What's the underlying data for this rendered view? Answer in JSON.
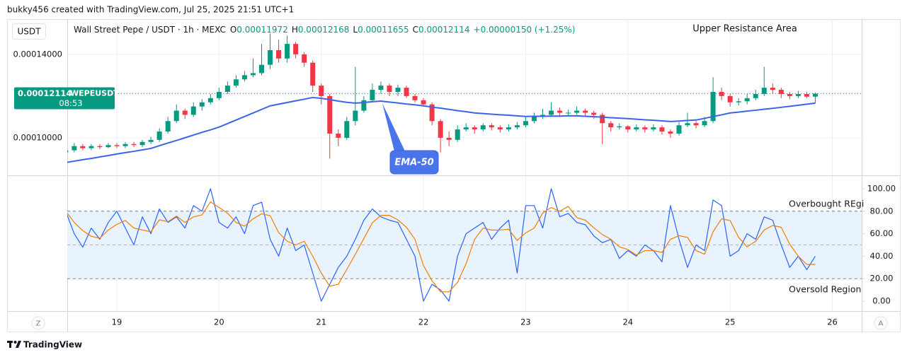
{
  "header": {
    "attribution": "bukky456 created with TradingView.com, Jul 25, 2025 21:51 UTC+1",
    "currency_button": "USDT",
    "symbol": "Wall Street Pepe / USDT · 1h · MEXC",
    "ohlc_labels": [
      "O",
      "H",
      "L",
      "C"
    ],
    "change": "+0.00000150 (+1.25%)",
    "ticker": "WEPEUSDT",
    "countdown": "08:53"
  },
  "footer": {
    "brand": "TradingView",
    "left_button": "Z",
    "right_button": "A"
  },
  "chart_data": {
    "type": "candlestick",
    "categories": [
      null,
      null,
      null,
      null,
      null,
      null,
      "19",
      null,
      null,
      null,
      null,
      null,
      null,
      null,
      null,
      null,
      null,
      null,
      "20",
      null,
      null,
      null,
      null,
      null,
      null,
      null,
      null,
      null,
      null,
      null,
      "21",
      null,
      null,
      null,
      null,
      null,
      null,
      null,
      null,
      null,
      null,
      null,
      "22",
      null,
      null,
      null,
      null,
      null,
      null,
      null,
      null,
      null,
      null,
      null,
      "23",
      null,
      null,
      null,
      null,
      null,
      null,
      null,
      null,
      null,
      null,
      null,
      "24",
      null,
      null,
      null,
      null,
      null,
      null,
      null,
      null,
      null,
      null,
      null,
      "25",
      null,
      null,
      null,
      null,
      null,
      null,
      null,
      null,
      null,
      null,
      null,
      "26"
    ],
    "ylim": [
      8.2e-05,
      0.0001569
    ],
    "yticks": [
      {
        "value": 0.0001,
        "label": "0.00010000"
      },
      {
        "value": 0.00014,
        "label": "0.00014000"
      }
    ],
    "grid": true,
    "annotations": [
      "Upper Resistance Area"
    ],
    "series": [
      {
        "up_color": "#089981",
        "down_color": "#f23645",
        "open": [
          9.3e-05,
          9.4e-05,
          9.6e-05,
          9.5e-05,
          9.6e-05,
          9.55e-05,
          9.65e-05,
          9.6e-05,
          9.7e-05,
          9.65e-05,
          9.8e-05,
          9.9e-05,
          0.000103,
          0.000108,
          0.000113,
          0.000111,
          0.000115,
          0.000117,
          0.000119,
          0.000122,
          0.000125,
          0.000128,
          0.00013,
          0.000131,
          0.000135,
          0.000142,
          0.000138,
          0.000145,
          0.00014,
          0.000136,
          0.000125,
          0.00012,
          0.000102,
          0.0001,
          0.000108,
          0.000113,
          0.000118,
          0.000123,
          0.000125,
          0.000122,
          0.000124,
          0.00012,
          0.000118,
          0.000116,
          0.000108,
          0.0001,
          9.9e-05,
          0.000104,
          0.000105,
          0.000104,
          0.000106,
          0.000105,
          0.000104,
          0.000105,
          0.000106,
          0.000108,
          0.00011,
          0.000111,
          0.000113,
          0.000112,
          0.000112,
          0.000113,
          0.000112,
          0.000111,
          0.000107,
          0.000105,
          0.0001055,
          0.000104,
          0.000105,
          0.000104,
          0.000105,
          0.000103,
          0.000102,
          0.000106,
          0.000107,
          0.000106,
          0.000108,
          0.000122,
          0.00012,
          0.000117,
          0.0001175,
          0.000119,
          0.000121,
          0.000124,
          0.000123,
          0.000121,
          0.00012,
          0.000121,
          0.00011972,
          null,
          null
        ],
        "high": [
          9.55e-05,
          9.75e-05,
          9.7e-05,
          9.7e-05,
          9.7e-05,
          9.75e-05,
          9.75e-05,
          9.8e-05,
          9.8e-05,
          9.9e-05,
          0.0001005,
          0.0001045,
          0.00011,
          0.000116,
          0.000114,
          0.000117,
          0.0001185,
          0.000121,
          0.000124,
          0.000127,
          0.00013,
          0.000132,
          0.000138,
          0.000145,
          0.00015,
          0.000147,
          0.000149,
          0.000146,
          0.000141,
          0.000137,
          0.000126,
          0.000121,
          0.000104,
          0.00011,
          0.000134,
          0.00012,
          0.000126,
          0.000127,
          0.000126,
          0.0001255,
          0.000125,
          0.000121,
          0.000119,
          0.000117,
          0.000109,
          0.000103,
          0.000106,
          0.000107,
          0.000106,
          0.000107,
          0.000107,
          0.000106,
          0.0001065,
          0.0001075,
          0.00011,
          0.000112,
          0.000114,
          0.000117,
          0.0001145,
          0.0001135,
          0.000115,
          0.000114,
          0.000113,
          0.000112,
          0.000108,
          0.000107,
          0.000106,
          0.0001065,
          0.000106,
          0.0001065,
          0.000106,
          0.000104,
          0.0001075,
          0.000112,
          0.000108,
          0.00011,
          0.000129,
          0.000124,
          0.000121,
          0.000119,
          0.000121,
          0.000123,
          0.000134,
          0.000126,
          0.000124,
          0.000122,
          0.0001225,
          0.000122,
          0.00012168,
          null,
          null
        ],
        "low": [
          9.2e-05,
          9.3e-05,
          9.4e-05,
          9.4e-05,
          9.45e-05,
          9.5e-05,
          9.5e-05,
          9.5e-05,
          9.55e-05,
          9.55e-05,
          9.7e-05,
          9.8e-05,
          0.000102,
          0.000107,
          0.000109,
          0.00011,
          0.000113,
          0.000116,
          0.000118,
          0.000121,
          0.000124,
          0.000127,
          0.000129,
          0.00013,
          0.000133,
          0.000136,
          0.000136,
          0.000138,
          0.000134,
          0.000122,
          0.000116,
          9e-05,
          9.6e-05,
          9.9e-05,
          0.000106,
          0.000112,
          0.000117,
          0.000121,
          0.00012,
          0.00012,
          0.000119,
          0.000117,
          0.000115,
          0.000106,
          9.3e-05,
          9.6e-05,
          9.8e-05,
          0.000103,
          0.000102,
          0.000103,
          0.0001035,
          0.0001025,
          0.000103,
          0.000104,
          0.000105,
          0.000107,
          0.000109,
          0.00011,
          0.00011,
          0.0001105,
          0.000111,
          0.0001105,
          0.000109,
          9.7e-05,
          0.000103,
          0.000104,
          0.0001025,
          0.000103,
          0.0001025,
          0.000103,
          0.0001015,
          0.0001,
          0.000101,
          0.000105,
          0.0001045,
          0.000105,
          0.000107,
          0.000118,
          0.000115,
          0.0001155,
          0.000116,
          0.000118,
          0.00012,
          0.000121,
          0.000119,
          0.0001185,
          0.000119,
          0.000119,
          0.00011655,
          null,
          null
        ],
        "close": [
          9.4e-05,
          9.6e-05,
          9.5e-05,
          9.6e-05,
          9.55e-05,
          9.65e-05,
          9.6e-05,
          9.7e-05,
          9.65e-05,
          9.8e-05,
          9.9e-05,
          0.000103,
          0.000108,
          0.000113,
          0.000111,
          0.000115,
          0.000117,
          0.000119,
          0.000122,
          0.000125,
          0.000128,
          0.00013,
          0.000131,
          0.000135,
          0.000142,
          0.000138,
          0.000145,
          0.00014,
          0.000136,
          0.000125,
          0.00012,
          0.000102,
          0.0001,
          0.000108,
          0.000113,
          0.000118,
          0.000123,
          0.000125,
          0.000122,
          0.000124,
          0.00012,
          0.000118,
          0.000116,
          0.000108,
          0.0001,
          9.9e-05,
          0.000104,
          0.000105,
          0.000104,
          0.000106,
          0.000105,
          0.000104,
          0.000105,
          0.000106,
          0.000108,
          0.00011,
          0.000111,
          0.000113,
          0.000112,
          0.000112,
          0.000113,
          0.000112,
          0.000111,
          0.000107,
          0.000105,
          0.0001055,
          0.000104,
          0.000105,
          0.000104,
          0.000105,
          0.000103,
          0.000102,
          0.000106,
          0.000107,
          0.000106,
          0.000108,
          0.000122,
          0.00012,
          0.000117,
          0.0001175,
          0.000119,
          0.000121,
          0.000124,
          0.000123,
          0.000121,
          0.00012,
          0.000121,
          0.00011972,
          0.00012114,
          null,
          null
        ]
      }
    ],
    "overlays": [
      {
        "label": "EMA-50",
        "color": "#3d63e8",
        "values": [
          8.81e-05,
          8.88e-05,
          8.95e-05,
          9.01e-05,
          9.08e-05,
          9.15e-05,
          9.22e-05,
          9.29e-05,
          9.35e-05,
          9.42e-05,
          9.49e-05,
          9.62e-05,
          9.75e-05,
          9.87e-05,
          0.0001,
          0.0001013,
          0.0001026,
          0.0001038,
          0.0001051,
          0.0001068,
          0.0001085,
          0.0001102,
          0.0001119,
          0.0001136,
          0.0001153,
          0.0001161,
          0.0001169,
          0.0001177,
          0.0001185,
          0.0001193,
          0.0001189,
          0.0001183,
          0.0001176,
          0.000117,
          0.0001166,
          0.0001169,
          0.0001173,
          0.0001176,
          0.0001171,
          0.0001167,
          0.0001162,
          0.0001158,
          0.0001153,
          0.0001147,
          0.0001142,
          0.0001136,
          0.000113,
          0.0001125,
          0.0001119,
          0.0001116,
          0.0001113,
          0.000111,
          0.0001108,
          0.0001105,
          0.0001102,
          0.0001103,
          0.0001103,
          0.0001104,
          0.0001104,
          0.0001105,
          0.0001105,
          0.0001103,
          0.0001101,
          0.0001099,
          0.0001096,
          0.0001094,
          0.0001092,
          0.0001089,
          0.0001086,
          0.0001084,
          0.0001081,
          0.0001078,
          0.000108,
          0.0001083,
          0.0001085,
          0.0001093,
          0.0001102,
          0.000111,
          0.0001119,
          0.0001123,
          0.0001128,
          0.0001132,
          0.0001137,
          0.0001141,
          0.0001146,
          0.0001151,
          0.0001156,
          0.0001161,
          0.0001166,
          null,
          null
        ]
      }
    ],
    "indicator": {
      "type": "line",
      "ylim": [
        -8.8,
        111.3
      ],
      "yticks": [
        {
          "value": 0,
          "label": "0.00"
        },
        {
          "value": 20,
          "label": "20.00"
        },
        {
          "value": 40,
          "label": "40.00"
        },
        {
          "value": 60,
          "label": "60.00"
        },
        {
          "value": 80,
          "label": "80.00"
        },
        {
          "value": 100,
          "label": "100.00"
        }
      ],
      "band": [
        20,
        80
      ],
      "midline": 50,
      "band_color": "#e8f3fd",
      "annotations": [
        "Overbought REgi",
        "Oversold Region"
      ],
      "series": [
        {
          "color": "#2962ff",
          "values": [
            80,
            60,
            48,
            65,
            55,
            70,
            80,
            65,
            50,
            75,
            60,
            82,
            70,
            75,
            65,
            85,
            80,
            100,
            70,
            65,
            75,
            60,
            85,
            88,
            55,
            40,
            65,
            45,
            50,
            25,
            0,
            15,
            30,
            40,
            55,
            72,
            82,
            75,
            72,
            70,
            55,
            40,
            0,
            15,
            10,
            0,
            40,
            60,
            65,
            70,
            55,
            65,
            72,
            25,
            85,
            85,
            65,
            100,
            75,
            78,
            70,
            68,
            58,
            52,
            55,
            38,
            45,
            40,
            50,
            45,
            35,
            85,
            55,
            30,
            50,
            45,
            90,
            85,
            40,
            45,
            60,
            55,
            75,
            72,
            50,
            30,
            40,
            28,
            40,
            null,
            null
          ]
        },
        {
          "color": "#f57c00",
          "values": [
            80,
            70,
            62.7,
            57.7,
            56,
            63.3,
            68.3,
            71.7,
            65,
            63.3,
            61.7,
            72.3,
            70.7,
            75.7,
            70,
            75,
            76.7,
            88.3,
            83.3,
            78.3,
            70,
            66.7,
            73.3,
            77.7,
            76,
            61,
            53.3,
            50,
            53.3,
            40,
            25,
            13.3,
            15,
            28.3,
            41.7,
            55.7,
            69.7,
            76.3,
            76.3,
            72.3,
            65.7,
            55,
            31.7,
            18.3,
            8.3,
            8.3,
            16.7,
            33.3,
            55,
            65,
            63.3,
            63.3,
            64,
            54,
            60.7,
            65,
            78.3,
            83.3,
            80,
            84.3,
            74.3,
            72,
            65.3,
            59.3,
            55,
            48.3,
            46,
            41,
            45,
            45,
            43.3,
            55,
            58.3,
            56.7,
            45,
            41.7,
            61.7,
            73.3,
            71.7,
            56.7,
            48.3,
            53.3,
            63.3,
            67.3,
            65.7,
            50.7,
            40,
            32.7,
            32.7,
            null,
            null
          ]
        }
      ]
    }
  }
}
